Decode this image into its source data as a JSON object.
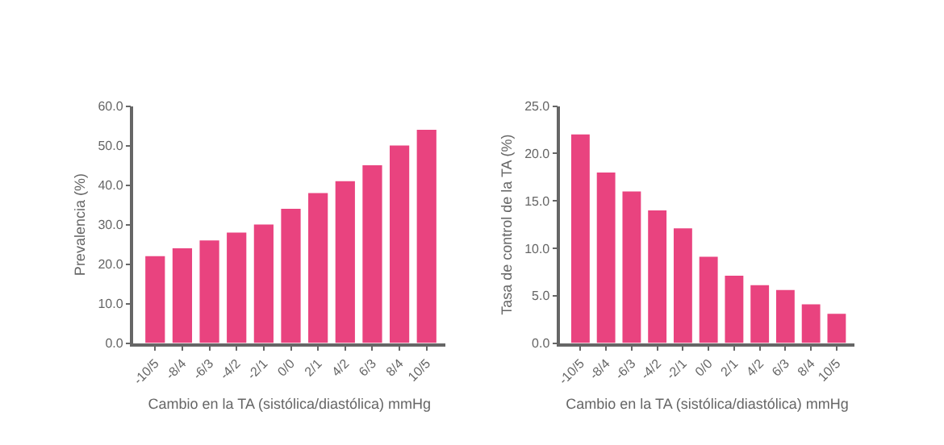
{
  "chart_data": [
    {
      "type": "bar",
      "xlabel": "Cambio en la TA (sistólica/diastólica) mmHg",
      "ylabel": "Prevalencia (%)",
      "categories": [
        "-10/5",
        "-8/4",
        "-6/3",
        "-4/2",
        "-2/1",
        "0/0",
        "2/1",
        "4/2",
        "6/3",
        "8/4",
        "10/5"
      ],
      "series": [
        {
          "color": "#e9437f",
          "values": [
            22,
            24,
            26,
            28,
            30,
            34,
            38,
            41,
            45,
            50,
            54
          ]
        }
      ],
      "ylim": [
        0,
        60
      ],
      "yticks": [
        {
          "value": 0,
          "label": "0.0"
        },
        {
          "value": 10,
          "label": "10.0"
        },
        {
          "value": 20,
          "label": "20.0"
        },
        {
          "value": 30,
          "label": "30.0"
        },
        {
          "value": 40,
          "label": "40.0"
        },
        {
          "value": 50,
          "label": "50.0"
        },
        {
          "value": 60,
          "label": "60.0"
        }
      ]
    },
    {
      "type": "bar",
      "xlabel": "Cambio en la TA (sistólica/diastólica) mmHg",
      "ylabel": "Tasa de control de la TA (%)",
      "categories": [
        "-10/5",
        "-8/4",
        "-6/3",
        "-4/2",
        "-2/1",
        "0/0",
        "2/1",
        "4/2",
        "6/3",
        "8/4",
        "10/5"
      ],
      "series": [
        {
          "color": "#e9437f",
          "values": [
            22,
            18,
            16,
            14,
            12.1,
            9.1,
            7.1,
            6.1,
            5.6,
            4.1,
            3.1
          ]
        }
      ],
      "ylim": [
        0,
        25
      ],
      "yticks": [
        {
          "value": 0,
          "label": "0.0"
        },
        {
          "value": 5,
          "label": "5.0"
        },
        {
          "value": 10,
          "label": "10.0"
        },
        {
          "value": 15,
          "label": "15.0"
        },
        {
          "value": 20,
          "label": "20.0"
        },
        {
          "value": 25,
          "label": "25.0"
        }
      ]
    }
  ]
}
